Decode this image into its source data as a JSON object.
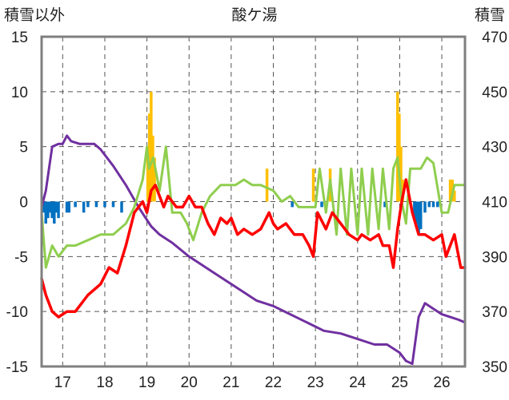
{
  "chart_data": {
    "type": "line",
    "title": "酸ケ湯",
    "left_axis_label": "積雪以外",
    "right_axis_label": "積雪",
    "x_ticks": [
      "17",
      "18",
      "19",
      "20",
      "21",
      "22",
      "23",
      "24",
      "25",
      "26"
    ],
    "x_range": [
      16.5,
      26.55
    ],
    "y_left": {
      "ticks": [
        "15",
        "10",
        "5",
        "0",
        "-5",
        "-10",
        "-15"
      ],
      "range": [
        -15,
        15
      ]
    },
    "y_right": {
      "ticks": [
        "470",
        "450",
        "430",
        "410",
        "390",
        "370",
        "350"
      ],
      "range": [
        350,
        470
      ]
    },
    "grid": true,
    "series": [
      {
        "axis": "right",
        "color": "#7030a0",
        "x": [
          16.5,
          16.6,
          16.75,
          16.9,
          17.0,
          17.1,
          17.2,
          17.4,
          17.6,
          17.75,
          17.9,
          18.2,
          18.5,
          18.8,
          19.1,
          19.3,
          19.6,
          20.0,
          20.4,
          20.8,
          21.2,
          21.6,
          22.0,
          22.4,
          22.8,
          23.2,
          23.6,
          24.0,
          24.4,
          24.7,
          25.0,
          25.15,
          25.3,
          25.45,
          25.6,
          25.8,
          26.0,
          26.2,
          26.4,
          26.55
        ],
        "values": [
          408,
          414,
          430,
          431,
          431,
          434,
          432,
          431,
          431,
          431,
          429,
          423,
          416,
          408,
          401,
          398,
          395,
          390,
          386,
          382,
          378,
          374,
          372,
          369,
          366,
          363,
          362,
          360,
          358,
          358,
          355,
          352,
          351,
          368,
          373,
          371,
          369,
          368,
          367,
          366
        ]
      },
      {
        "axis": "left",
        "color": "#8fce4e",
        "x": [
          16.5,
          16.6,
          16.75,
          16.9,
          17.1,
          17.3,
          17.6,
          17.9,
          18.2,
          18.5,
          18.7,
          18.9,
          19.0,
          19.05,
          19.15,
          19.3,
          19.45,
          19.6,
          19.8,
          19.95,
          20.1,
          20.3,
          20.5,
          20.75,
          20.9,
          21.1,
          21.3,
          21.5,
          21.7,
          22.0,
          22.2,
          22.4,
          22.6,
          22.8,
          23.0,
          23.1,
          23.25,
          23.35,
          23.5,
          23.6,
          23.75,
          23.85,
          24.0,
          24.1,
          24.25,
          24.35,
          24.5,
          24.6,
          24.75,
          24.85,
          24.95,
          25.05,
          25.15,
          25.25,
          25.35,
          25.5,
          25.65,
          25.8,
          26.0,
          26.15,
          26.3,
          26.45,
          26.55
        ],
        "values": [
          -1,
          -6,
          -4,
          -5,
          -4,
          -4,
          -3.5,
          -3,
          -3,
          -2,
          -0.5,
          2,
          5,
          3,
          4,
          1,
          5,
          -1,
          -1,
          -2,
          -3.5,
          -1,
          0.5,
          1.5,
          1.5,
          1.5,
          2,
          1.5,
          1.5,
          1,
          0,
          0.5,
          -0.5,
          -0.5,
          -0.5,
          3,
          -1,
          2,
          -3,
          3,
          -3,
          3,
          -3,
          3,
          -3,
          3,
          -2.5,
          3,
          -2.5,
          3,
          4,
          0,
          -2,
          3,
          3,
          3,
          4,
          3.5,
          -1,
          -1,
          1.5,
          1.5,
          1.5
        ]
      },
      {
        "axis": "left",
        "color": "#ff0000",
        "x": [
          16.5,
          16.6,
          16.75,
          16.9,
          17.1,
          17.3,
          17.6,
          17.9,
          18.1,
          18.3,
          18.5,
          18.7,
          18.9,
          19.0,
          19.1,
          19.2,
          19.4,
          19.5,
          19.7,
          19.85,
          20.0,
          20.15,
          20.3,
          20.45,
          20.6,
          20.75,
          20.9,
          21.0,
          21.15,
          21.3,
          21.5,
          21.7,
          21.9,
          22.0,
          22.1,
          22.3,
          22.5,
          22.7,
          22.85,
          22.95,
          23.05,
          23.25,
          23.4,
          23.6,
          23.8,
          24.0,
          24.1,
          24.3,
          24.5,
          24.6,
          24.75,
          24.85,
          24.95,
          25.05,
          25.15,
          25.3,
          25.45,
          25.6,
          25.8,
          26.0,
          26.1,
          26.3,
          26.45,
          26.55
        ],
        "values": [
          -7,
          -8.5,
          -10,
          -10.5,
          -10,
          -10,
          -8.5,
          -7.5,
          -6,
          -6.5,
          -4,
          -1,
          0,
          -1,
          1,
          1.5,
          -0.5,
          0.5,
          -0.5,
          -0.5,
          0.5,
          -0.5,
          -0.5,
          -2,
          -3,
          -1.5,
          -2,
          -1.5,
          -3,
          -2.5,
          -3,
          -2.5,
          -1,
          -2,
          -2.5,
          -2,
          -3,
          -3,
          -4,
          -5,
          -1,
          -2.5,
          -1,
          -2,
          -3,
          -3.5,
          -3,
          -3.5,
          -3,
          -4,
          -4,
          -6,
          -2.5,
          0,
          2,
          -1,
          -3,
          -3,
          -3.5,
          -3,
          -5,
          -3,
          -6,
          -6
        ]
      }
    ],
    "bars": [
      {
        "axis": "left",
        "color": "#ffc000",
        "x": [
          19.02,
          19.06,
          19.1,
          19.14,
          19.18,
          21.85,
          22.95,
          23.35,
          24.95,
          24.99,
          25.03,
          25.07,
          26.2,
          26.25,
          26.3
        ],
        "values": [
          5,
          8,
          10,
          6,
          4,
          3,
          3,
          3,
          10,
          8,
          5,
          2,
          2,
          2,
          1
        ]
      },
      {
        "axis": "left",
        "color": "#0070c0",
        "x": [
          16.55,
          16.6,
          16.65,
          16.7,
          16.75,
          16.8,
          16.85,
          16.9,
          17.1,
          17.15,
          17.3,
          17.5,
          17.6,
          17.8,
          18.0,
          18.2,
          18.4,
          22.45,
          23.15,
          24.65,
          25.35,
          25.4,
          25.45,
          25.5,
          25.6,
          25.7,
          25.8,
          25.9
        ],
        "values": [
          -1,
          -2,
          -1.5,
          -1,
          -1.5,
          -2,
          -1,
          -1.5,
          -1,
          -1,
          -0.5,
          -1,
          -0.5,
          -0.5,
          -0.5,
          -0.5,
          -1,
          -0.5,
          -0.5,
          -0.5,
          -1.5,
          -2,
          -3,
          -2.5,
          -1,
          -0.5,
          -0.5,
          -0.5
        ]
      }
    ]
  }
}
